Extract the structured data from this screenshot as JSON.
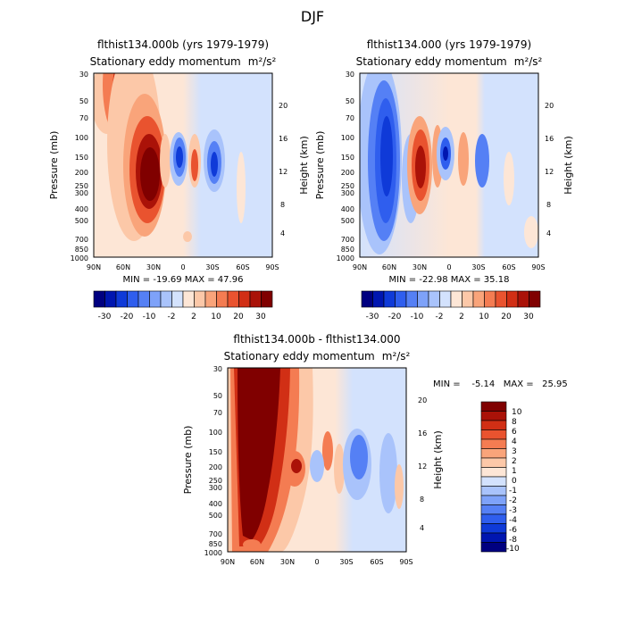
{
  "figure_title": "DJF",
  "colors": {
    "neg": [
      "#000080",
      "#0016b0",
      "#0f3ad8",
      "#2f5eee",
      "#5580f5",
      "#7ea2f9",
      "#a9c3fb",
      "#d3e2fd"
    ],
    "pos": [
      "#fde6d6",
      "#fcc8a8",
      "#f9a47a",
      "#f47c52",
      "#e9532f",
      "#d12f15",
      "#aa1208",
      "#800000"
    ]
  },
  "chart_data": [
    {
      "id": "panel1",
      "type": "contour",
      "title": "flthist134.000b (yrs 1979-1979)",
      "subtitle_text": "Stationary eddy momentum",
      "units": "m²/s²",
      "ylabel": "Pressure (mb)",
      "y2label": "Height (km)",
      "pressure_ticks": [
        "30",
        "50",
        "70",
        "100",
        "150",
        "200",
        "250",
        "300",
        "400",
        "500",
        "700",
        "850",
        "1000"
      ],
      "height_ticks": [
        "4",
        "8",
        "12",
        "16",
        "20"
      ],
      "xticks": [
        "90N",
        "60N",
        "30N",
        "0",
        "30S",
        "60S",
        "90S"
      ],
      "stats": "MIN = -19.69   MAX = 47.96",
      "colorbar_labels": [
        "-30",
        "-20",
        "-10",
        "-2",
        "2",
        "10",
        "20",
        "30"
      ],
      "features": [
        {
          "lat": 33,
          "p": 180,
          "value": 47.96
        },
        {
          "lat": 57,
          "p": 45,
          "value": 18
        },
        {
          "lat": 20,
          "p": 130,
          "value": 9
        },
        {
          "lat": -8,
          "p": 150,
          "value": -14
        },
        {
          "lat": -33,
          "p": 160,
          "value": -12
        },
        {
          "lat": -20,
          "p": 160,
          "value": 6
        },
        {
          "lat": -45,
          "p": 170,
          "value": 3
        }
      ]
    },
    {
      "id": "panel2",
      "type": "contour",
      "title": "flthist134.000 (yrs 1979-1979)",
      "subtitle_text": "Stationary eddy momentum",
      "units": "m²/s²",
      "ylabel": "Pressure (mb)",
      "y2label": "Height (km)",
      "pressure_ticks": [
        "30",
        "50",
        "70",
        "100",
        "150",
        "200",
        "250",
        "300",
        "400",
        "500",
        "700",
        "850",
        "1000"
      ],
      "height_ticks": [
        "4",
        "8",
        "12",
        "16",
        "20"
      ],
      "xticks": [
        "90N",
        "60N",
        "30N",
        "0",
        "30S",
        "60S",
        "90S"
      ],
      "stats": "MIN = -22.98   MAX = 35.18",
      "colorbar_labels": [
        "-30",
        "-20",
        "-10",
        "-2",
        "2",
        "10",
        "20",
        "30"
      ],
      "features": [
        {
          "lat": 62,
          "p": 150,
          "value": -22.98
        },
        {
          "lat": 30,
          "p": 180,
          "value": 35.18
        },
        {
          "lat": 10,
          "p": 140,
          "value": 10
        },
        {
          "lat": -2,
          "p": 140,
          "value": -12
        },
        {
          "lat": -20,
          "p": 150,
          "value": 6
        },
        {
          "lat": -33,
          "p": 160,
          "value": -8
        },
        {
          "lat": -75,
          "p": 170,
          "value": 2
        }
      ]
    },
    {
      "id": "panel3",
      "type": "contour",
      "title": "flthist134.000b - flthist134.000",
      "subtitle_text": "Stationary eddy momentum",
      "units": "m²/s²",
      "ylabel": "Pressure (mb)",
      "y2label": "Height (km)",
      "pressure_ticks": [
        "30",
        "50",
        "70",
        "100",
        "150",
        "200",
        "250",
        "300",
        "400",
        "500",
        "700",
        "850",
        "1000"
      ],
      "height_ticks": [
        "4",
        "8",
        "12",
        "16",
        "20"
      ],
      "xticks": [
        "90N",
        "60N",
        "30N",
        "0",
        "30S",
        "60S",
        "90S"
      ],
      "stats": "MIN =    -5.14   MAX =   25.95",
      "colorbar_labels": [
        "10",
        "8",
        "6",
        "4",
        "3",
        "2",
        "1",
        "0",
        "-1",
        "-2",
        "-3",
        "-4",
        "-6",
        "-8",
        "-10"
      ],
      "features": [
        {
          "lat": 55,
          "p": 150,
          "value": 25.95
        },
        {
          "lat": 35,
          "p": 200,
          "value": 8
        },
        {
          "lat": -8,
          "p": 140,
          "value": 3
        },
        {
          "lat": -35,
          "p": 160,
          "value": -4
        },
        {
          "lat": -50,
          "p": 170,
          "value": -2
        },
        {
          "lat": -70,
          "p": 200,
          "value": 2
        }
      ]
    }
  ]
}
